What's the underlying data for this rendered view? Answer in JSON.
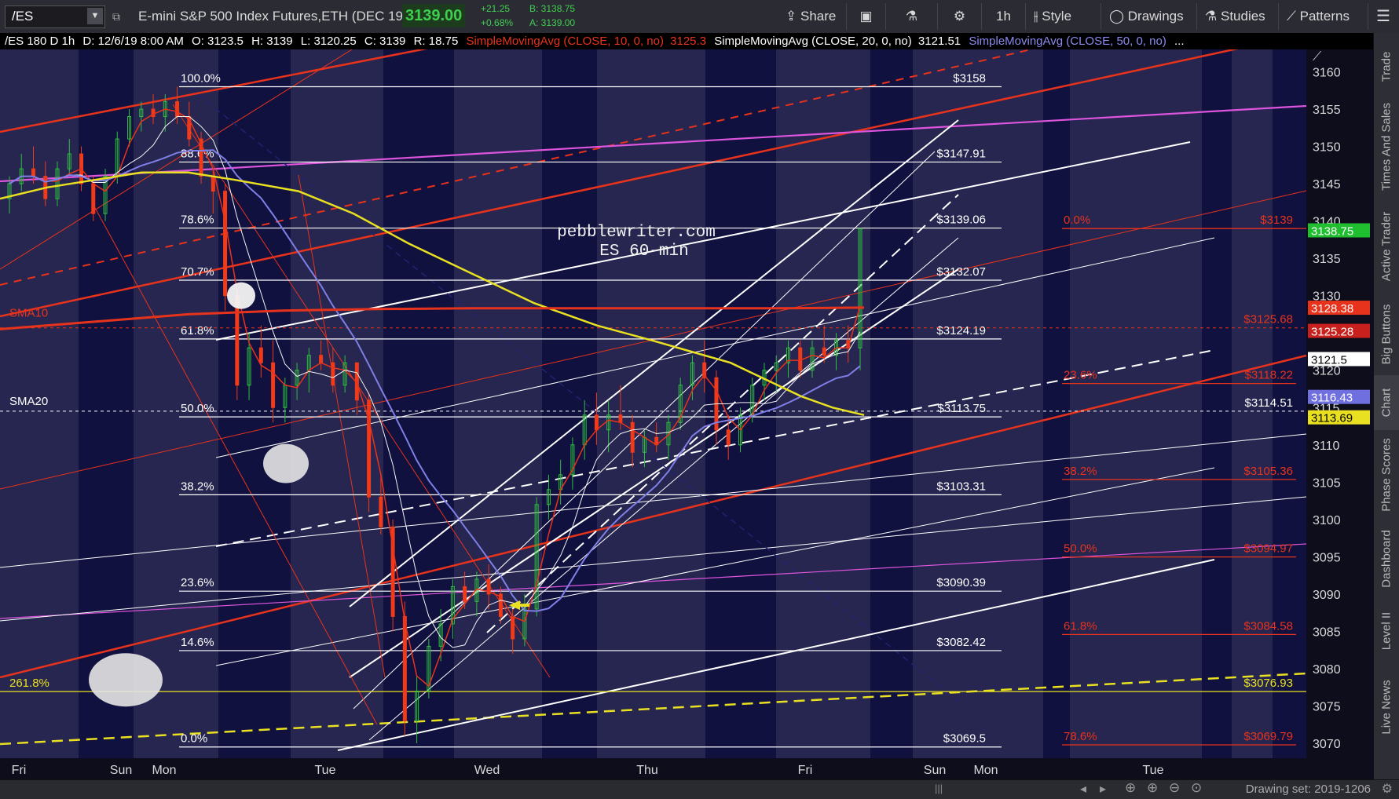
{
  "toolbar": {
    "symbol": "/ES",
    "description": "E-mini S&P 500 Index Futures,ETH (DEC 19)",
    "last_price": "3139.00",
    "net_change": "+21.25",
    "pct_change": "+0.68%",
    "bid": "B: 3138.75",
    "ask": "A: 3139.00",
    "share_label": "Share",
    "timeframe_label": "1h",
    "style_label": "Style",
    "drawings_label": "Drawings",
    "studies_label": "Studies",
    "patterns_label": "Patterns",
    "colors": {
      "up": "#3fcf4f",
      "bg": "#2b2b33"
    }
  },
  "infobar": {
    "label": "/ES 180 D 1h",
    "date": "D: 12/6/19 8:00 AM",
    "open": "O: 3123.5",
    "high": "H: 3139",
    "low": "L: 3120.25",
    "close": "C: 3139",
    "range": "R: 18.75",
    "sma10_label": "SimpleMovingAvg (CLOSE, 10, 0, no)",
    "sma10_value": "3125.3",
    "sma20_label": "SimpleMovingAvg (CLOSE, 20, 0, no)",
    "sma20_value": "3121.51",
    "sma50_label": "SimpleMovingAvg (CLOSE, 50, 0, no)",
    "more": "..."
  },
  "right_tabs": [
    "Trade",
    "Times And Sales",
    "Active Trader",
    "Big Buttons",
    "Chart",
    "Phase Scores",
    "Dashboard",
    "Level II",
    "Live News"
  ],
  "status": {
    "drawing_set": "Drawing set: 2019-1206"
  },
  "chart_data": {
    "type": "candlestick",
    "symbol": "/ES",
    "timeframe": "1h",
    "ylim": [
      3068,
      3163
    ],
    "yticks": [
      3070,
      3075,
      3080,
      3085,
      3090,
      3095,
      3100,
      3105,
      3110,
      3115,
      3120,
      3125,
      3130,
      3135,
      3140,
      3145,
      3150,
      3155,
      3160
    ],
    "x_labels": [
      "Fri",
      "Sun",
      "Mon",
      "Tue",
      "Wed",
      "Thu",
      "Fri",
      "Sun",
      "Mon",
      "Tue"
    ],
    "watermark": [
      "pebblewriter.com",
      "ES 60-min"
    ],
    "colors": {
      "up": "#2fbf3f",
      "down": "#f03a1a",
      "sma10": "#e8331c",
      "sma20": "#f4f4f4",
      "sma50": "#7f7fe8",
      "yellow": "#e8e020",
      "magenta": "#dd55dd",
      "fib_white": "#ffffff",
      "fib_red": "#e8331c"
    },
    "fib_levels_white": [
      {
        "pct": "100.0%",
        "price_label": "$3158",
        "value": 3158
      },
      {
        "pct": "88.6%",
        "price_label": "$3147.91",
        "value": 3147.91
      },
      {
        "pct": "78.6%",
        "price_label": "$3139.06",
        "value": 3139.06
      },
      {
        "pct": "70.7%",
        "price_label": "$3132.07",
        "value": 3132.07
      },
      {
        "pct": "61.8%",
        "price_label": "$3124.19",
        "value": 3124.19
      },
      {
        "pct": "50.0%",
        "price_label": "$3113.75",
        "value": 3113.75
      },
      {
        "pct": "38.2%",
        "price_label": "$3103.31",
        "value": 3103.31
      },
      {
        "pct": "23.6%",
        "price_label": "$3090.39",
        "value": 3090.39
      },
      {
        "pct": "14.6%",
        "price_label": "$3082.42",
        "value": 3082.42
      },
      {
        "pct": "0.0%",
        "price_label": "$3069.5",
        "value": 3069.5
      }
    ],
    "fib_levels_red": [
      {
        "pct": "0.0%",
        "price_label": "$3139",
        "value": 3139
      },
      {
        "pct": "23.6%",
        "price_label": "$3118.22",
        "value": 3118.22
      },
      {
        "pct": "38.2%",
        "price_label": "$3105.36",
        "value": 3105.36
      },
      {
        "pct": "50.0%",
        "price_label": "$3094.97",
        "value": 3094.97
      },
      {
        "pct": "61.8%",
        "price_label": "$3084.58",
        "value": 3084.58
      },
      {
        "pct": "78.6%",
        "price_label": "$3069.79",
        "value": 3069.79
      }
    ],
    "horizontal_lines": [
      {
        "label": "SMA10",
        "price_label": "$3125.68",
        "value": 3125.68
      },
      {
        "label": "SMA20",
        "price_label": "$3114.51",
        "value": 3114.51
      },
      {
        "label": "261.8%",
        "price_label": "$3076.93",
        "value": 3076.93
      }
    ],
    "price_tags": [
      {
        "text": "3138.75",
        "value": 3138.75,
        "bg": "#1fbf2f",
        "fg": "#ffffff"
      },
      {
        "text": "3128.38",
        "value": 3128.38,
        "bg": "#e8331c",
        "fg": "#ffffff"
      },
      {
        "text": "3125.28",
        "value": 3125.28,
        "bg": "#c8201c",
        "fg": "#ffffff"
      },
      {
        "text": "3121.5",
        "value": 3121.5,
        "bg": "#ffffff",
        "fg": "#000000"
      },
      {
        "text": "3116.43",
        "value": 3116.43,
        "bg": "#6f6fe0",
        "fg": "#ffffff"
      },
      {
        "text": "3113.69",
        "value": 3113.69,
        "bg": "#e8e020",
        "fg": "#000000"
      }
    ],
    "series": [
      {
        "name": "SimpleMovingAvg (CLOSE, 10, 0, no)"
      },
      {
        "name": "SimpleMovingAvg (CLOSE, 20, 0, no)"
      },
      {
        "name": "SimpleMovingAvg (CLOSE, 50, 0, no)"
      }
    ],
    "candles": [
      [
        3143,
        3146,
        3141,
        3145
      ],
      [
        3145,
        3149,
        3144,
        3147
      ],
      [
        3147,
        3150,
        3145,
        3146
      ],
      [
        3146,
        3148,
        3142,
        3143
      ],
      [
        3143,
        3148,
        3142,
        3147
      ],
      [
        3147,
        3151,
        3146,
        3149
      ],
      [
        3149,
        3150,
        3144,
        3145
      ],
      [
        3145,
        3146,
        3140,
        3141
      ],
      [
        3141,
        3147,
        3140,
        3146
      ],
      [
        3146,
        3152,
        3145,
        3151
      ],
      [
        3151,
        3155,
        3150,
        3154
      ],
      [
        3154,
        3156,
        3152,
        3155
      ],
      [
        3155,
        3157,
        3153,
        3154
      ],
      [
        3154,
        3157,
        3152,
        3156
      ],
      [
        3156,
        3158,
        3153,
        3154
      ],
      [
        3154,
        3156,
        3150,
        3151
      ],
      [
        3151,
        3152,
        3145,
        3146
      ],
      [
        3146,
        3147,
        3141,
        3144
      ],
      [
        3144,
        3145,
        3128,
        3130
      ],
      [
        3130,
        3131,
        3116,
        3118
      ],
      [
        3118,
        3125,
        3116,
        3123
      ],
      [
        3123,
        3126,
        3119,
        3121
      ],
      [
        3121,
        3124,
        3113,
        3115
      ],
      [
        3115,
        3119,
        3113,
        3118
      ],
      [
        3118,
        3121,
        3116,
        3120
      ],
      [
        3120,
        3123,
        3117,
        3122
      ],
      [
        3122,
        3124,
        3120,
        3121
      ],
      [
        3121,
        3123,
        3117,
        3118
      ],
      [
        3118,
        3122,
        3117,
        3121
      ],
      [
        3121,
        3121,
        3114,
        3116
      ],
      [
        3116,
        3117,
        3101,
        3103
      ],
      [
        3103,
        3106,
        3098,
        3099
      ],
      [
        3099,
        3100,
        3085,
        3087
      ],
      [
        3087,
        3089,
        3071,
        3073
      ],
      [
        3073,
        3079,
        3070,
        3077
      ],
      [
        3077,
        3084,
        3076,
        3083
      ],
      [
        3083,
        3088,
        3081,
        3086
      ],
      [
        3086,
        3092,
        3084,
        3091
      ],
      [
        3091,
        3093,
        3088,
        3089
      ],
      [
        3089,
        3093,
        3087,
        3092
      ],
      [
        3092,
        3094,
        3088,
        3090
      ],
      [
        3090,
        3091,
        3086,
        3087
      ],
      [
        3087,
        3088,
        3082,
        3084
      ],
      [
        3084,
        3090,
        3083,
        3088
      ],
      [
        3088,
        3103,
        3087,
        3102
      ],
      [
        3102,
        3106,
        3100,
        3104
      ],
      [
        3104,
        3108,
        3102,
        3106
      ],
      [
        3106,
        3111,
        3104,
        3110
      ],
      [
        3110,
        3116,
        3108,
        3114
      ],
      [
        3114,
        3117,
        3110,
        3112
      ],
      [
        3112,
        3116,
        3109,
        3114
      ],
      [
        3114,
        3118,
        3112,
        3113
      ],
      [
        3113,
        3114,
        3107,
        3109
      ],
      [
        3109,
        3112,
        3107,
        3111
      ],
      [
        3111,
        3113,
        3109,
        3110
      ],
      [
        3110,
        3114,
        3108,
        3113
      ],
      [
        3113,
        3119,
        3112,
        3118
      ],
      [
        3118,
        3122,
        3116,
        3121
      ],
      [
        3121,
        3124,
        3117,
        3119
      ],
      [
        3119,
        3120,
        3110,
        3112
      ],
      [
        3112,
        3114,
        3108,
        3110
      ],
      [
        3110,
        3115,
        3109,
        3114
      ],
      [
        3114,
        3119,
        3113,
        3118
      ],
      [
        3118,
        3121,
        3116,
        3120
      ],
      [
        3120,
        3122,
        3117,
        3121
      ],
      [
        3121,
        3124,
        3119,
        3123
      ],
      [
        3123,
        3124,
        3119,
        3120
      ],
      [
        3120,
        3124,
        3119,
        3123
      ],
      [
        3123,
        3126,
        3121,
        3122
      ],
      [
        3122,
        3125,
        3120,
        3124
      ],
      [
        3124,
        3126,
        3121,
        3123
      ],
      [
        3123,
        3139,
        3120,
        3139
      ]
    ]
  }
}
